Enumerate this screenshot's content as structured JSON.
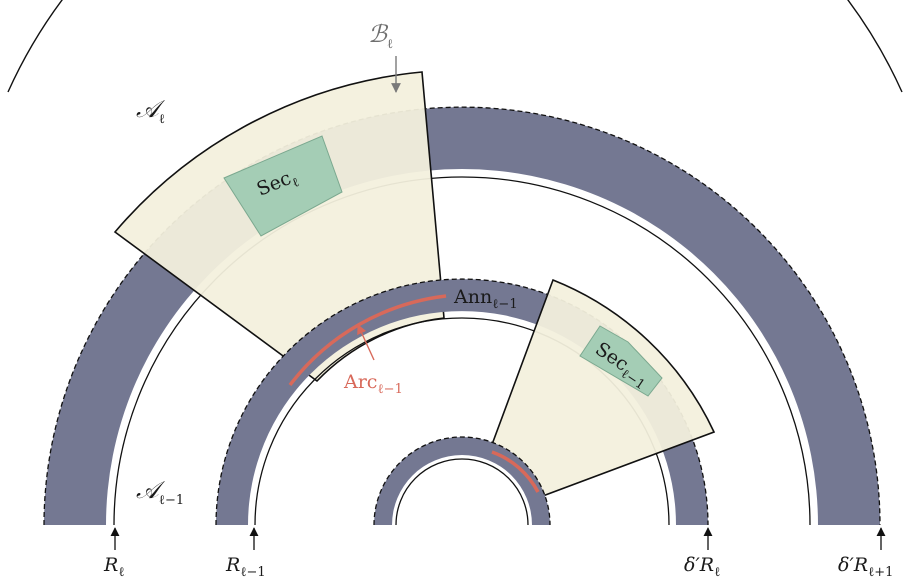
{
  "colors": {
    "annulus": "#747892",
    "sector_fill": "#f3f0dd",
    "sec_fill": "#a4cdb5",
    "arc": "#d8695a",
    "stroke": "#111111",
    "note_gray": "#7a7a7a"
  },
  "labels": {
    "script_a_ell": {
      "base": "𝒜",
      "sub": "ℓ"
    },
    "script_a_ell_minus": {
      "base": "𝒜",
      "sub": "ℓ−1"
    },
    "script_b_ell": {
      "base": "ℬ",
      "sub": "ℓ"
    },
    "ann": {
      "base": "Ann",
      "sub": "ℓ−1"
    },
    "arc": {
      "base": "Arc",
      "sub": "ℓ−1"
    },
    "sec_outer": {
      "base": "Sec",
      "sub": "ℓ"
    },
    "sec_inner": {
      "base": "Sec",
      "sub": "ℓ−1"
    }
  },
  "axis_labels": [
    {
      "base": "R",
      "sub": "ℓ"
    },
    {
      "base": "R",
      "sub": "ℓ−1"
    },
    {
      "base": "δ′R",
      "sub": "ℓ"
    },
    {
      "base": "δ′R",
      "sub": "ℓ+1"
    }
  ]
}
